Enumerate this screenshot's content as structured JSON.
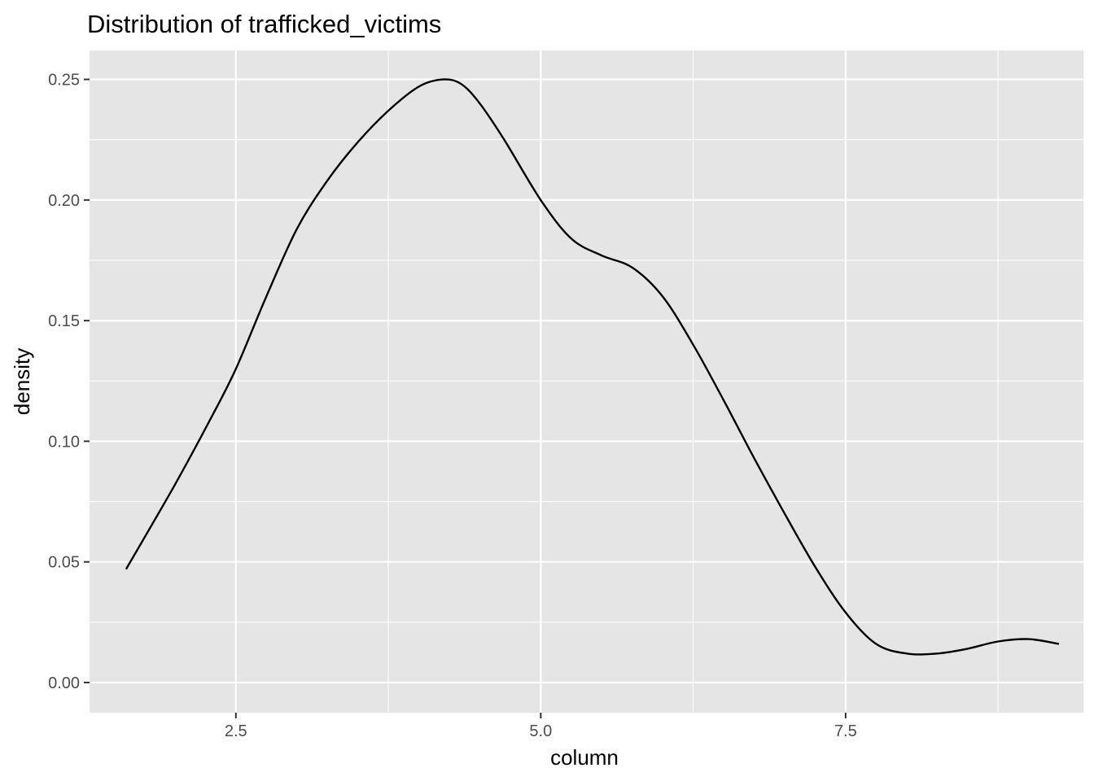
{
  "chart_data": {
    "type": "line",
    "title": "Distribution of trafficked_victims",
    "xlabel": "column",
    "ylabel": "density",
    "xlim": [
      1.3,
      9.45
    ],
    "ylim": [
      -0.0125,
      0.262
    ],
    "x_ticks": [
      2.5,
      5.0,
      7.5
    ],
    "x_tick_labels": [
      "2.5",
      "5.0",
      "7.5"
    ],
    "y_ticks": [
      0.0,
      0.05,
      0.1,
      0.15,
      0.2,
      0.25
    ],
    "y_tick_labels": [
      "0.00",
      "0.05",
      "0.10",
      "0.15",
      "0.20",
      "0.25"
    ],
    "grid": true,
    "legend": "none",
    "colors": {
      "panel": "#e5e5e5",
      "grid": "#ffffff",
      "line": "#000000",
      "tick": "#4d4d4d"
    },
    "series": [
      {
        "x": [
          1.6,
          2.0,
          2.3,
          2.5,
          2.75,
          3.0,
          3.25,
          3.5,
          3.75,
          4.0,
          4.2,
          4.35,
          4.5,
          4.7,
          5.0,
          5.25,
          5.5,
          5.75,
          6.0,
          6.25,
          6.5,
          6.75,
          7.0,
          7.25,
          7.5,
          7.75,
          8.0,
          8.25,
          8.5,
          8.75,
          9.0,
          9.25
        ],
        "y": [
          0.047,
          0.082,
          0.11,
          0.13,
          0.16,
          0.188,
          0.208,
          0.224,
          0.237,
          0.247,
          0.25,
          0.248,
          0.24,
          0.225,
          0.2,
          0.184,
          0.177,
          0.172,
          0.16,
          0.14,
          0.117,
          0.093,
          0.07,
          0.048,
          0.029,
          0.016,
          0.012,
          0.012,
          0.014,
          0.017,
          0.018,
          0.016
        ]
      }
    ]
  }
}
